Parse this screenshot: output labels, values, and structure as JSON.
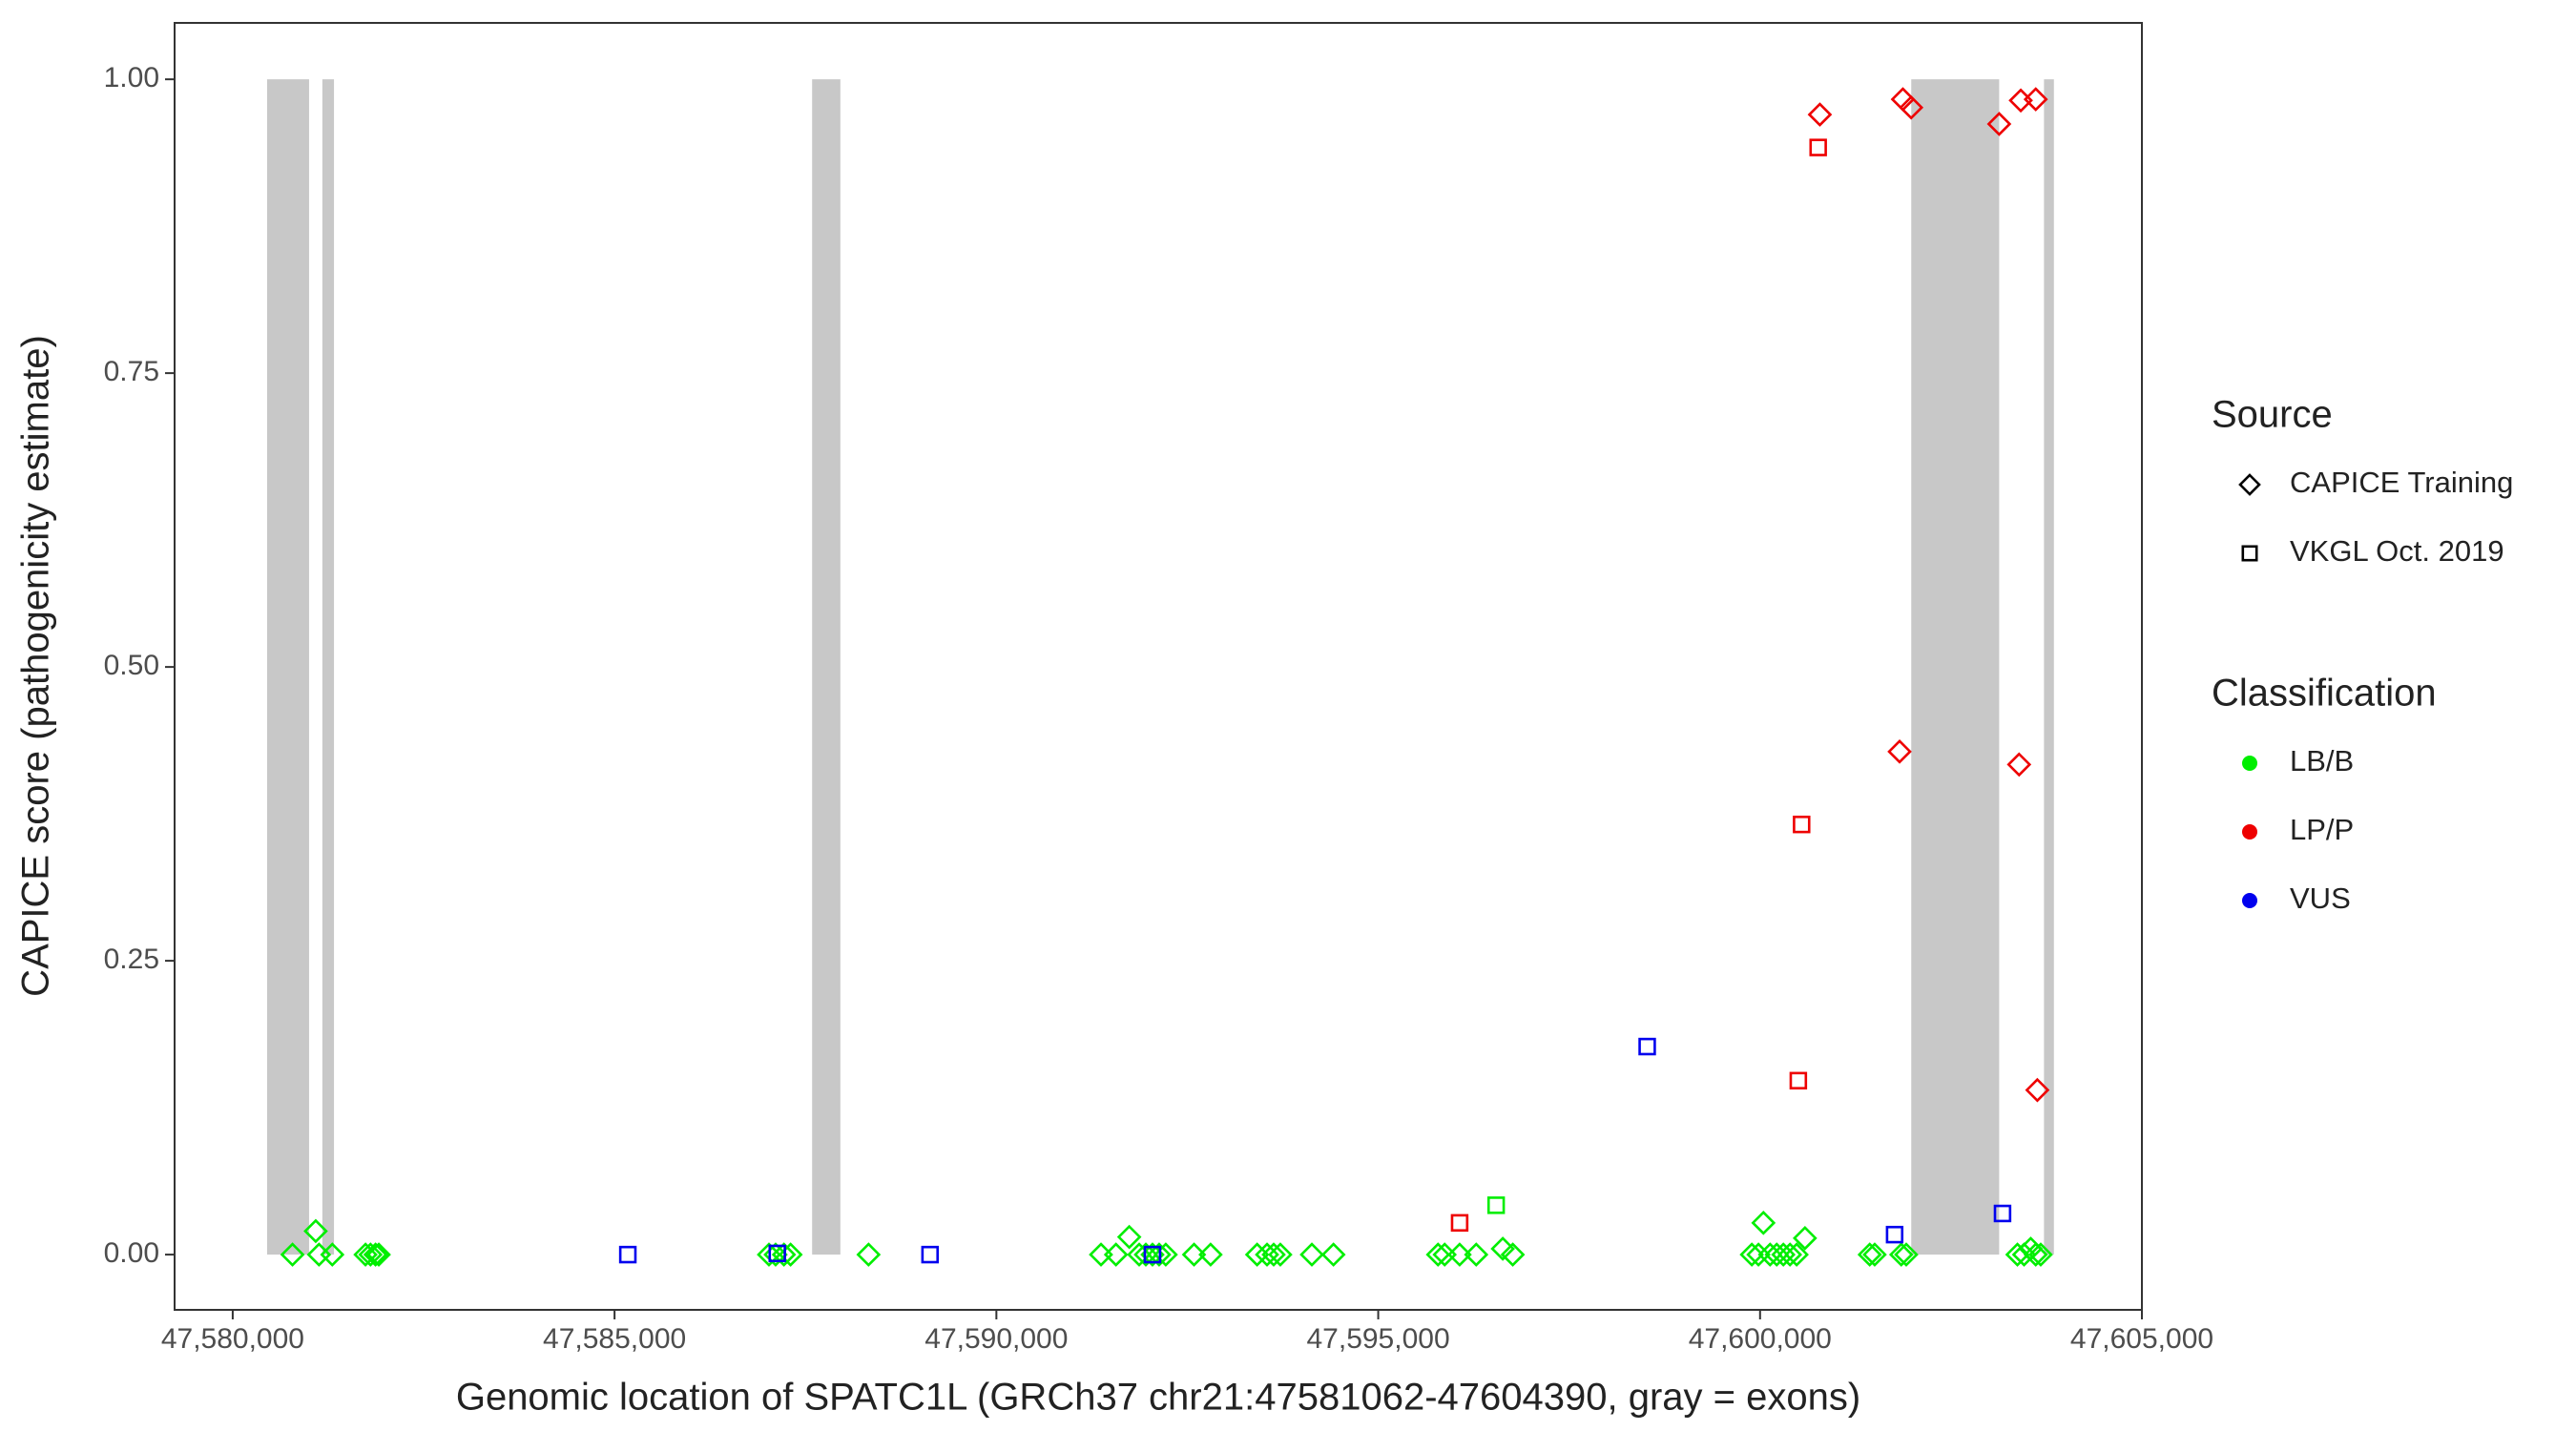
{
  "chart_data": {
    "type": "scatter",
    "xlabel": "Genomic location of SPATC1L (GRCh37 chr21:47581062-47604390, gray = exons)",
    "ylabel": "CAPICE score (pathogenicity estimate)",
    "xlim": [
      47579239,
      47605000
    ],
    "ylim": [
      -0.047,
      1.048
    ],
    "xticks": [
      {
        "value": 47580000,
        "label": "47,580,000"
      },
      {
        "value": 47585000,
        "label": "47,585,000"
      },
      {
        "value": 47590000,
        "label": "47,590,000"
      },
      {
        "value": 47595000,
        "label": "47,595,000"
      },
      {
        "value": 47600000,
        "label": "47,600,000"
      },
      {
        "value": 47605000,
        "label": "47,605,000"
      }
    ],
    "yticks": [
      {
        "value": 0,
        "label": "0.00"
      },
      {
        "value": 0.25,
        "label": "0.25"
      },
      {
        "value": 0.5,
        "label": "0.50"
      },
      {
        "value": 0.75,
        "label": "0.75"
      },
      {
        "value": 1,
        "label": "1.00"
      }
    ],
    "exon_color": "#c8c8c8",
    "exons": [
      [
        47580450,
        47581000
      ],
      [
        47581174,
        47581326
      ],
      [
        47587587,
        47587957
      ],
      [
        47601980,
        47603131
      ],
      [
        47603718,
        47603848
      ]
    ],
    "source_title": "Source",
    "sources": [
      {
        "name": "CAPICE Training",
        "shape": "diamond"
      },
      {
        "name": "VKGL Oct. 2019",
        "shape": "square"
      }
    ],
    "class_title": "Classification",
    "series": [
      {
        "name": "LB/B",
        "color": "#00ee00",
        "by_source": [
          {
            "x": [
              47580783,
              47581087,
              47581130,
              47581304,
              47581739,
              47581804,
              47581870,
              47581913,
              47587022,
              47587109,
              47587218,
              47587305,
              47588326,
              47591370,
              47591566,
              47591740,
              47591870,
              47591957,
              47592044,
              47592131,
              47592218,
              47592588,
              47592805,
              47593414,
              47593544,
              47593631,
              47593718,
              47594131,
              47594414,
              47595783,
              47595870,
              47596066,
              47596283,
              47596631,
              47596762,
              47599892,
              47599979,
              47600044,
              47600131,
              47600218,
              47600305,
              47600392,
              47600479,
              47600588,
              47601436,
              47601501,
              47601849,
              47601914,
              47603370,
              47603457,
              47603544,
              47603610,
              47603675
            ],
            "y": [
              0,
              0.02,
              0,
              0,
              0,
              0,
              0,
              0,
              0,
              0,
              0,
              0,
              0,
              0,
              0,
              0.015,
              0,
              0,
              0,
              0,
              0,
              0,
              0,
              0,
              0,
              0,
              0,
              0,
              0,
              0,
              0,
              0,
              0,
              0.005,
              0,
              0,
              0,
              0.027,
              0,
              0,
              0,
              0,
              0,
              0.014,
              0,
              0,
              0,
              0,
              0,
              0,
              0.005,
              0,
              0
            ]
          },
          {
            "x": [
              47596544
            ],
            "y": [
              0.042
            ]
          }
        ]
      },
      {
        "name": "LP/P",
        "color": "#ee0000",
        "by_source": [
          {
            "x": [
              47600783,
              47601870,
              47601979,
              47603131,
              47603414,
              47603610,
              47601827,
              47603392,
              47603631
            ],
            "y": [
              0.97,
              0.983,
              0.976,
              0.962,
              0.982,
              0.983,
              0.428,
              0.417,
              0.14
            ]
          },
          {
            "x": [
              47600761,
              47600544,
              47600501,
              47596066
            ],
            "y": [
              0.942,
              0.366,
              0.148,
              0.027
            ]
          }
        ]
      },
      {
        "name": "VUS",
        "color": "#0000ee",
        "by_source": [
          {
            "x": [],
            "y": []
          },
          {
            "x": [
              47585174,
              47587131,
              47589131,
              47592044,
              47598522,
              47601762,
              47603175
            ],
            "y": [
              0,
              0.001,
              0,
              0,
              0.177,
              0.017,
              0.035
            ]
          }
        ]
      }
    ]
  }
}
